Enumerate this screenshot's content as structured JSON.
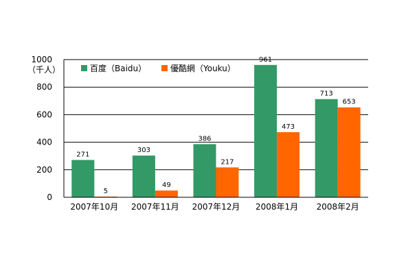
{
  "chart_data": {
    "type": "bar",
    "title": "",
    "xlabel": "",
    "ylabel": "（千人）",
    "ylim": [
      0,
      1000
    ],
    "yticks": [
      0,
      200,
      400,
      600,
      800,
      1000
    ],
    "grid": true,
    "legend": "top-left",
    "categories": [
      "2007年10月",
      "2007年11月",
      "2007年12月",
      "2008年1月",
      "2008年2月"
    ],
    "series": [
      {
        "name": "百度（Baidu）",
        "color": "#339966",
        "values": [
          271,
          303,
          386,
          961,
          713
        ]
      },
      {
        "name": "優酷網（Youku）",
        "color": "#ff6600",
        "values": [
          5,
          49,
          217,
          473,
          653
        ]
      }
    ]
  }
}
